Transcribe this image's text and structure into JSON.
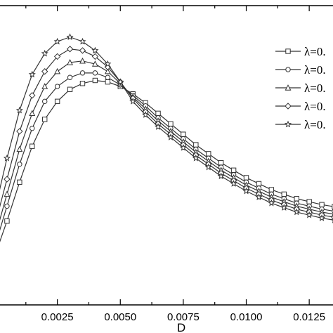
{
  "chart_data": {
    "type": "line",
    "xlabel": "D",
    "ylabel": "",
    "xlim": [
      0.0,
      0.0135
    ],
    "ylim": [
      0.0,
      1.0
    ],
    "x_ticks": [
      "0.0025",
      "0.0050",
      "0.0075",
      "0.0100",
      "0.0125"
    ],
    "x_tick_values": [
      0.0025,
      0.005,
      0.0075,
      0.01,
      0.0125
    ],
    "grid": false,
    "legend_position": "right",
    "series": [
      {
        "name": "λ=0.",
        "marker": "square",
        "x": [
          0.0,
          0.0005,
          0.001,
          0.0015,
          0.002,
          0.0025,
          0.003,
          0.0035,
          0.004,
          0.0045,
          0.005,
          0.0055,
          0.006,
          0.0065,
          0.007,
          0.0075,
          0.008,
          0.0085,
          0.009,
          0.0095,
          0.01,
          0.0105,
          0.011,
          0.0115,
          0.012,
          0.0125,
          0.013,
          0.0135
        ],
        "values": [
          0.16,
          0.28,
          0.41,
          0.53,
          0.62,
          0.68,
          0.72,
          0.74,
          0.75,
          0.745,
          0.73,
          0.705,
          0.675,
          0.64,
          0.605,
          0.57,
          0.535,
          0.505,
          0.475,
          0.45,
          0.425,
          0.405,
          0.385,
          0.37,
          0.355,
          0.345,
          0.335,
          0.328
        ]
      },
      {
        "name": "λ=0.",
        "marker": "circle",
        "x": [
          0.0,
          0.0005,
          0.001,
          0.0015,
          0.002,
          0.0025,
          0.003,
          0.0035,
          0.004,
          0.0045,
          0.005,
          0.0055,
          0.006,
          0.0065,
          0.007,
          0.0075,
          0.008,
          0.0085,
          0.009,
          0.0095,
          0.01,
          0.0105,
          0.011,
          0.0115,
          0.012,
          0.0125,
          0.013,
          0.0135
        ],
        "values": [
          0.19,
          0.33,
          0.47,
          0.59,
          0.68,
          0.73,
          0.76,
          0.775,
          0.775,
          0.76,
          0.735,
          0.7,
          0.665,
          0.625,
          0.59,
          0.555,
          0.52,
          0.49,
          0.46,
          0.435,
          0.41,
          0.39,
          0.37,
          0.355,
          0.34,
          0.33,
          0.32,
          0.313
        ]
      },
      {
        "name": "λ=0.",
        "marker": "triangle",
        "x": [
          0.0,
          0.0005,
          0.001,
          0.0015,
          0.002,
          0.0025,
          0.003,
          0.0035,
          0.004,
          0.0045,
          0.005,
          0.0055,
          0.006,
          0.0065,
          0.007,
          0.0075,
          0.008,
          0.0085,
          0.009,
          0.0095,
          0.01,
          0.0105,
          0.011,
          0.0115,
          0.012,
          0.0125,
          0.013,
          0.0135
        ],
        "values": [
          0.22,
          0.37,
          0.52,
          0.64,
          0.73,
          0.78,
          0.81,
          0.815,
          0.805,
          0.78,
          0.74,
          0.695,
          0.655,
          0.615,
          0.58,
          0.545,
          0.51,
          0.48,
          0.45,
          0.425,
          0.4,
          0.38,
          0.36,
          0.345,
          0.33,
          0.32,
          0.31,
          0.303
        ]
      },
      {
        "name": "λ=0.",
        "marker": "diamond",
        "x": [
          0.0,
          0.0005,
          0.001,
          0.0015,
          0.002,
          0.0025,
          0.003,
          0.0035,
          0.004,
          0.0045,
          0.005,
          0.0055,
          0.006,
          0.0065,
          0.007,
          0.0075,
          0.008,
          0.0085,
          0.009,
          0.0095,
          0.01,
          0.0105,
          0.011,
          0.0115,
          0.012,
          0.0125,
          0.013,
          0.0135
        ],
        "values": [
          0.26,
          0.42,
          0.58,
          0.7,
          0.78,
          0.83,
          0.855,
          0.85,
          0.83,
          0.795,
          0.745,
          0.69,
          0.645,
          0.605,
          0.57,
          0.535,
          0.5,
          0.47,
          0.44,
          0.415,
          0.39,
          0.37,
          0.35,
          0.335,
          0.32,
          0.31,
          0.3,
          0.293
        ]
      },
      {
        "name": "λ=0.",
        "marker": "star",
        "x": [
          0.0,
          0.0005,
          0.001,
          0.0015,
          0.002,
          0.0025,
          0.003,
          0.0035,
          0.004,
          0.0045,
          0.005,
          0.0055,
          0.006,
          0.0065,
          0.007,
          0.0075,
          0.008,
          0.0085,
          0.009,
          0.0095,
          0.01,
          0.0105,
          0.011,
          0.0115,
          0.012,
          0.0125,
          0.013,
          0.0135
        ],
        "values": [
          0.31,
          0.49,
          0.65,
          0.77,
          0.84,
          0.88,
          0.895,
          0.88,
          0.85,
          0.805,
          0.745,
          0.68,
          0.635,
          0.595,
          0.56,
          0.525,
          0.49,
          0.46,
          0.43,
          0.405,
          0.38,
          0.36,
          0.34,
          0.325,
          0.31,
          0.3,
          0.29,
          0.283
        ]
      }
    ]
  }
}
